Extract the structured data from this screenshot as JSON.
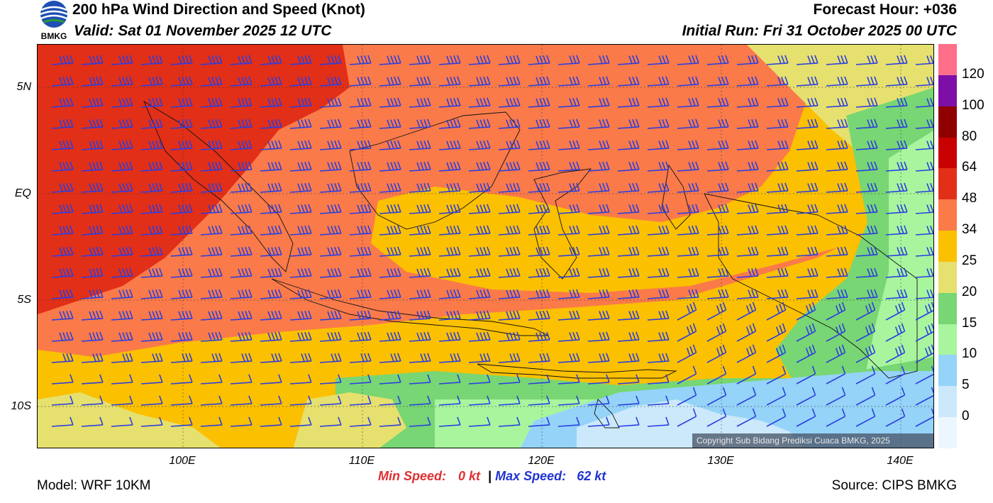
{
  "header": {
    "title": "200 hPa Wind Direction and Speed (Knot)",
    "valid": "Valid: Sat 01 November 2025 12 UTC",
    "forecast_hour": "Forecast Hour: +036",
    "initial_run": "Initial Run: Fri 31 October 2025 00 UTC"
  },
  "logo": {
    "text": "BMKG",
    "icon": "bmkg-logo-icon"
  },
  "map": {
    "lat_labels": [
      "5N",
      "EQ",
      "5S",
      "10S"
    ],
    "lon_labels": [
      "100E",
      "110E",
      "120E",
      "130E",
      "140E"
    ],
    "copyright": "Copyright Sub Bidang Prediksi Cuaca BMKG, 2025"
  },
  "colorbar": {
    "labels": [
      "120",
      "100",
      "80",
      "64",
      "48",
      "34",
      "25",
      "20",
      "15",
      "10",
      "5",
      "0"
    ],
    "colors": [
      "#ff6f8a",
      "#7d0fa8",
      "#8f0000",
      "#c80000",
      "#e22f18",
      "#fa7a4a",
      "#fbc000",
      "#e6e06e",
      "#78d674",
      "#a8f59e",
      "#95d3f8",
      "#cbe9fb",
      "#ecf6ff"
    ]
  },
  "footer": {
    "min_label": "Min Speed:",
    "min_value": "0 kt",
    "separator": "|",
    "max_label": "Max Speed:",
    "max_value": "62 kt",
    "model": "Model: WRF 10KM",
    "source": "Source: CIPS BMKG"
  }
}
